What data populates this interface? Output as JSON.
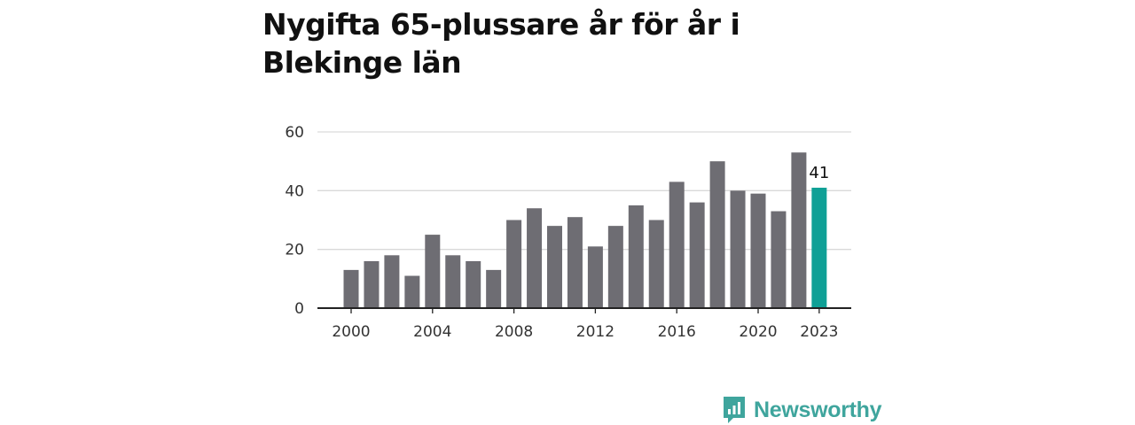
{
  "title": "Nygifta 65-plussare år för år i Blekinge län",
  "brand": {
    "name": "Newsworthy",
    "icon": "newsworthy-logo-icon"
  },
  "colors": {
    "bar": "#6e6d73",
    "highlight": "#0fa096",
    "grid": "#d9d9d9",
    "axis": "#222222",
    "brand": "#3fa59d"
  },
  "chart_data": {
    "type": "bar",
    "title": "Nygifta 65-plussare år för år i Blekinge län",
    "xlabel": "",
    "ylabel": "",
    "x": [
      2000,
      2001,
      2002,
      2003,
      2004,
      2005,
      2006,
      2007,
      2008,
      2009,
      2010,
      2011,
      2012,
      2013,
      2014,
      2015,
      2016,
      2017,
      2018,
      2019,
      2020,
      2021,
      2022,
      2023
    ],
    "values": [
      13,
      16,
      18,
      11,
      25,
      18,
      16,
      13,
      30,
      34,
      28,
      31,
      21,
      28,
      35,
      30,
      43,
      36,
      50,
      40,
      39,
      33,
      53,
      41
    ],
    "ylim": [
      0,
      60
    ],
    "yticks": [
      0,
      20,
      40,
      60
    ],
    "xticks": [
      2000,
      2004,
      2008,
      2012,
      2016,
      2020,
      2023
    ],
    "highlight": {
      "x": 2023,
      "label": "41"
    },
    "grid": true,
    "legend": "none"
  }
}
